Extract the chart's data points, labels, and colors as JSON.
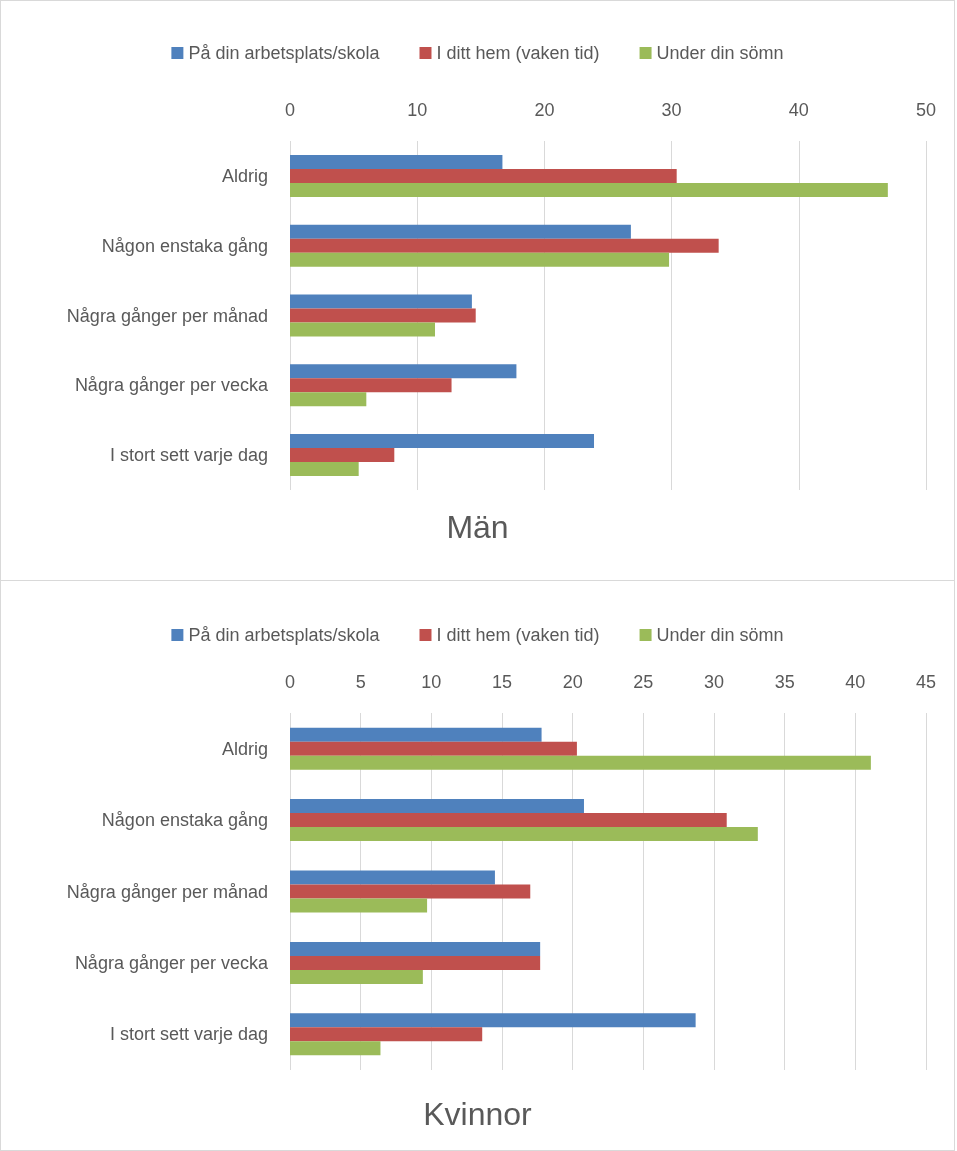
{
  "chart_data": [
    {
      "type": "bar",
      "orientation": "horizontal",
      "title": "Män",
      "categories": [
        "Aldrig",
        "Någon enstaka gång",
        "Några gånger per månad",
        "Några gånger per vecka",
        "I stort sett varje dag"
      ],
      "series": [
        {
          "name": "På din arbetsplats/skola",
          "color": "#4f81bd",
          "values": [
            16.7,
            26.8,
            14.3,
            17.8,
            23.9
          ]
        },
        {
          "name": "I ditt hem (vaken tid)",
          "color": "#c0504d",
          "values": [
            30.4,
            33.7,
            14.6,
            12.7,
            8.2
          ]
        },
        {
          "name": "Under din sömn",
          "color": "#9bbb59",
          "values": [
            47.0,
            29.8,
            11.4,
            6.0,
            5.4
          ]
        }
      ],
      "xlim": [
        0,
        50
      ],
      "xticks": [
        0,
        10,
        20,
        30,
        40,
        50
      ],
      "grid": "x",
      "legend": "top"
    },
    {
      "type": "bar",
      "orientation": "horizontal",
      "title": "Kvinnor",
      "categories": [
        "Aldrig",
        "Någon enstaka gång",
        "Några gånger per månad",
        "Några gånger per vecka",
        "I stort sett varje dag"
      ],
      "series": [
        {
          "name": "På din arbetsplats/skola",
          "color": "#4f81bd",
          "values": [
            17.8,
            20.8,
            14.5,
            17.7,
            28.7
          ]
        },
        {
          "name": "I ditt hem (vaken tid)",
          "color": "#c0504d",
          "values": [
            20.3,
            30.9,
            17.0,
            17.7,
            13.6
          ]
        },
        {
          "name": "Under din sömn",
          "color": "#9bbb59",
          "values": [
            41.1,
            33.1,
            9.7,
            9.4,
            6.4
          ]
        }
      ],
      "xlim": [
        0,
        45
      ],
      "xticks": [
        0,
        5,
        10,
        15,
        20,
        25,
        30,
        35,
        40,
        45
      ],
      "grid": "x",
      "legend": "top"
    }
  ]
}
